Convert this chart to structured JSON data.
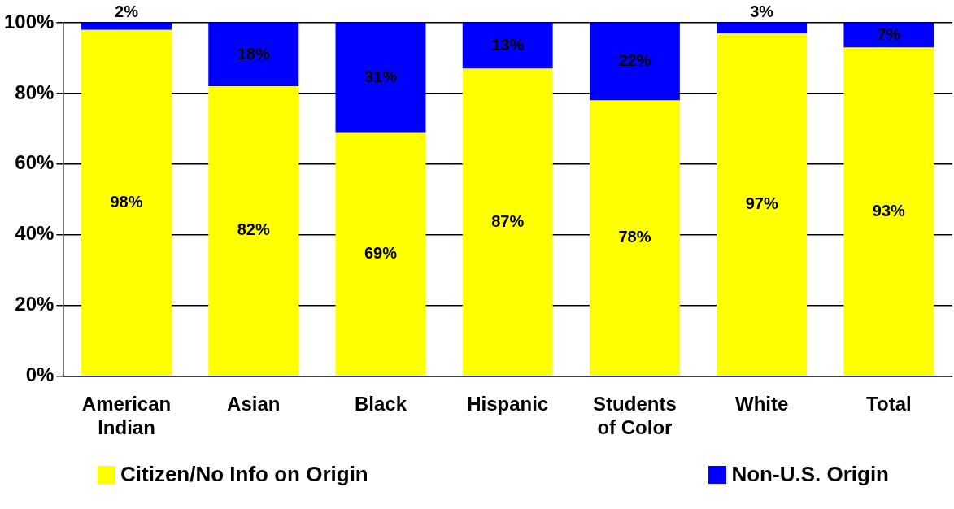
{
  "chart_data": {
    "type": "bar",
    "stacked": true,
    "categories": [
      "American Indian",
      "Asian",
      "Black",
      "Hispanic",
      "Students of Color",
      "White",
      "Total"
    ],
    "series": [
      {
        "name": "Citizen/No Info on Origin",
        "color": "#ffff00",
        "values": [
          98,
          82,
          69,
          87,
          78,
          97,
          93
        ],
        "value_labels": [
          "98%",
          "82%",
          "69%",
          "87%",
          "78%",
          "97%",
          "93%"
        ]
      },
      {
        "name": "Non-U.S. Origin",
        "color": "#0000ff",
        "values": [
          2,
          18,
          31,
          13,
          22,
          3,
          7
        ],
        "value_labels": [
          "2%",
          "18%",
          "31%",
          "13%",
          "22%",
          "3%",
          "7%"
        ]
      }
    ],
    "ylim": [
      0,
      100
    ],
    "yticks": [
      {
        "value": 0,
        "label": "0%"
      },
      {
        "value": 20,
        "label": "20%"
      },
      {
        "value": 40,
        "label": "40%"
      },
      {
        "value": 60,
        "label": "60%"
      },
      {
        "value": 80,
        "label": "80%"
      },
      {
        "value": 100,
        "label": "100%"
      }
    ],
    "grid": "y",
    "legend": "bottom"
  }
}
